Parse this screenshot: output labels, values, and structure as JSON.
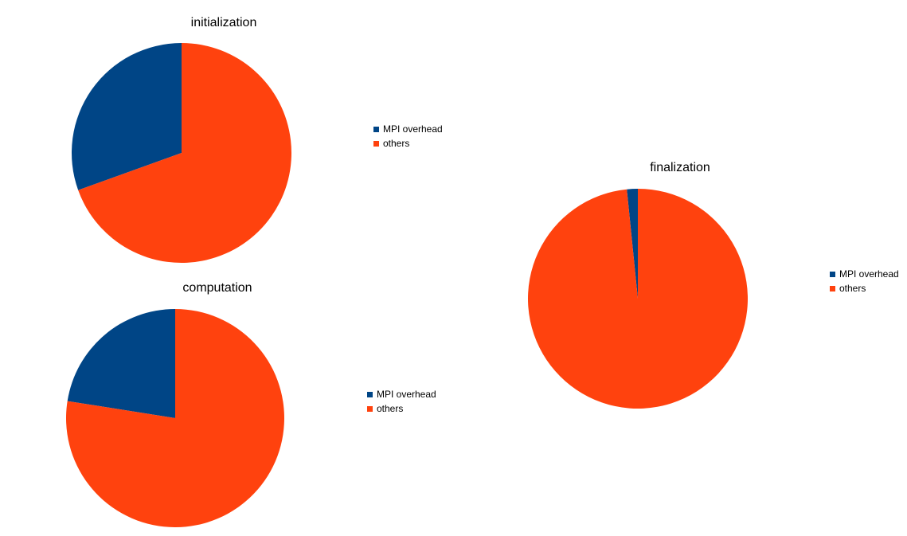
{
  "colors": {
    "mpi": "#004586",
    "others": "#ff420e"
  },
  "chart_data": [
    {
      "type": "pie",
      "title": "initialization",
      "labels": [
        "MPI overhead",
        "others"
      ],
      "values": [
        30.5,
        69.5
      ],
      "legend": [
        "MPI overhead",
        "others"
      ],
      "legend_position": "right"
    },
    {
      "type": "pie",
      "title": "computation",
      "labels": [
        "MPI overhead",
        "others"
      ],
      "values": [
        22.5,
        77.5
      ],
      "legend": [
        "MPI overhead",
        "others"
      ],
      "legend_position": "right"
    },
    {
      "type": "pie",
      "title": "finalization",
      "labels": [
        "MPI overhead",
        "others"
      ],
      "values": [
        1.6,
        98.4
      ],
      "legend": [
        "MPI overhead",
        "others"
      ],
      "legend_position": "right"
    }
  ]
}
